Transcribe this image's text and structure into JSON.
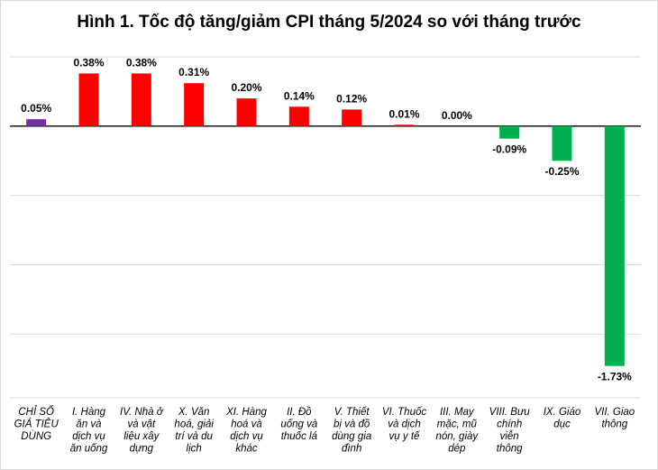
{
  "chart_data": {
    "type": "bar",
    "title": "Hình 1. Tốc độ tăng/giảm CPI tháng 5/2024 so với tháng trước",
    "xlabel": "",
    "ylabel": "",
    "ylim": [
      -1.96,
      0.5
    ],
    "grid": true,
    "legend": "none",
    "categories": [
      [
        "CHỈ SỐ",
        "GIÁ TIÊU",
        "DÙNG"
      ],
      [
        "I. Hàng",
        "ăn và",
        "dịch vụ",
        "ăn uống"
      ],
      [
        "IV. Nhà ở",
        "và vật",
        "liệu xây",
        "dựng"
      ],
      [
        "X. Văn",
        "hoá, giải",
        "trí và du",
        "lịch"
      ],
      [
        "XI. Hàng",
        "hoá và",
        "dịch vụ",
        "khác"
      ],
      [
        "II. Đồ",
        "uống và",
        "thuốc lá"
      ],
      [
        "V. Thiết",
        "bị và đồ",
        "dùng gia",
        "đình"
      ],
      [
        "VI. Thuốc",
        "và dịch",
        "vụ y tế"
      ],
      [
        "III. May",
        "mặc, mũ",
        "nón, giày",
        "dép"
      ],
      [
        "VIII. Bưu",
        "chính",
        "viễn",
        "thông"
      ],
      [
        "IX. Giáo",
        "dục"
      ],
      [
        "VII. Giao",
        "thông"
      ]
    ],
    "values": [
      0.05,
      0.38,
      0.38,
      0.31,
      0.2,
      0.14,
      0.12,
      0.01,
      0.0,
      -0.09,
      -0.25,
      -1.73
    ],
    "value_labels": [
      "0.05%",
      "0.38%",
      "0.38%",
      "0.31%",
      "0.20%",
      "0.14%",
      "0.12%",
      "0.01%",
      "0.00%",
      "-0.09%",
      "-0.25%",
      "-1.73%"
    ],
    "colors": [
      "#7030a0",
      "#ff0000",
      "#ff0000",
      "#ff0000",
      "#ff0000",
      "#ff0000",
      "#ff0000",
      "#ff0000",
      "#ff0000",
      "#00b050",
      "#00b050",
      "#00b050"
    ]
  }
}
